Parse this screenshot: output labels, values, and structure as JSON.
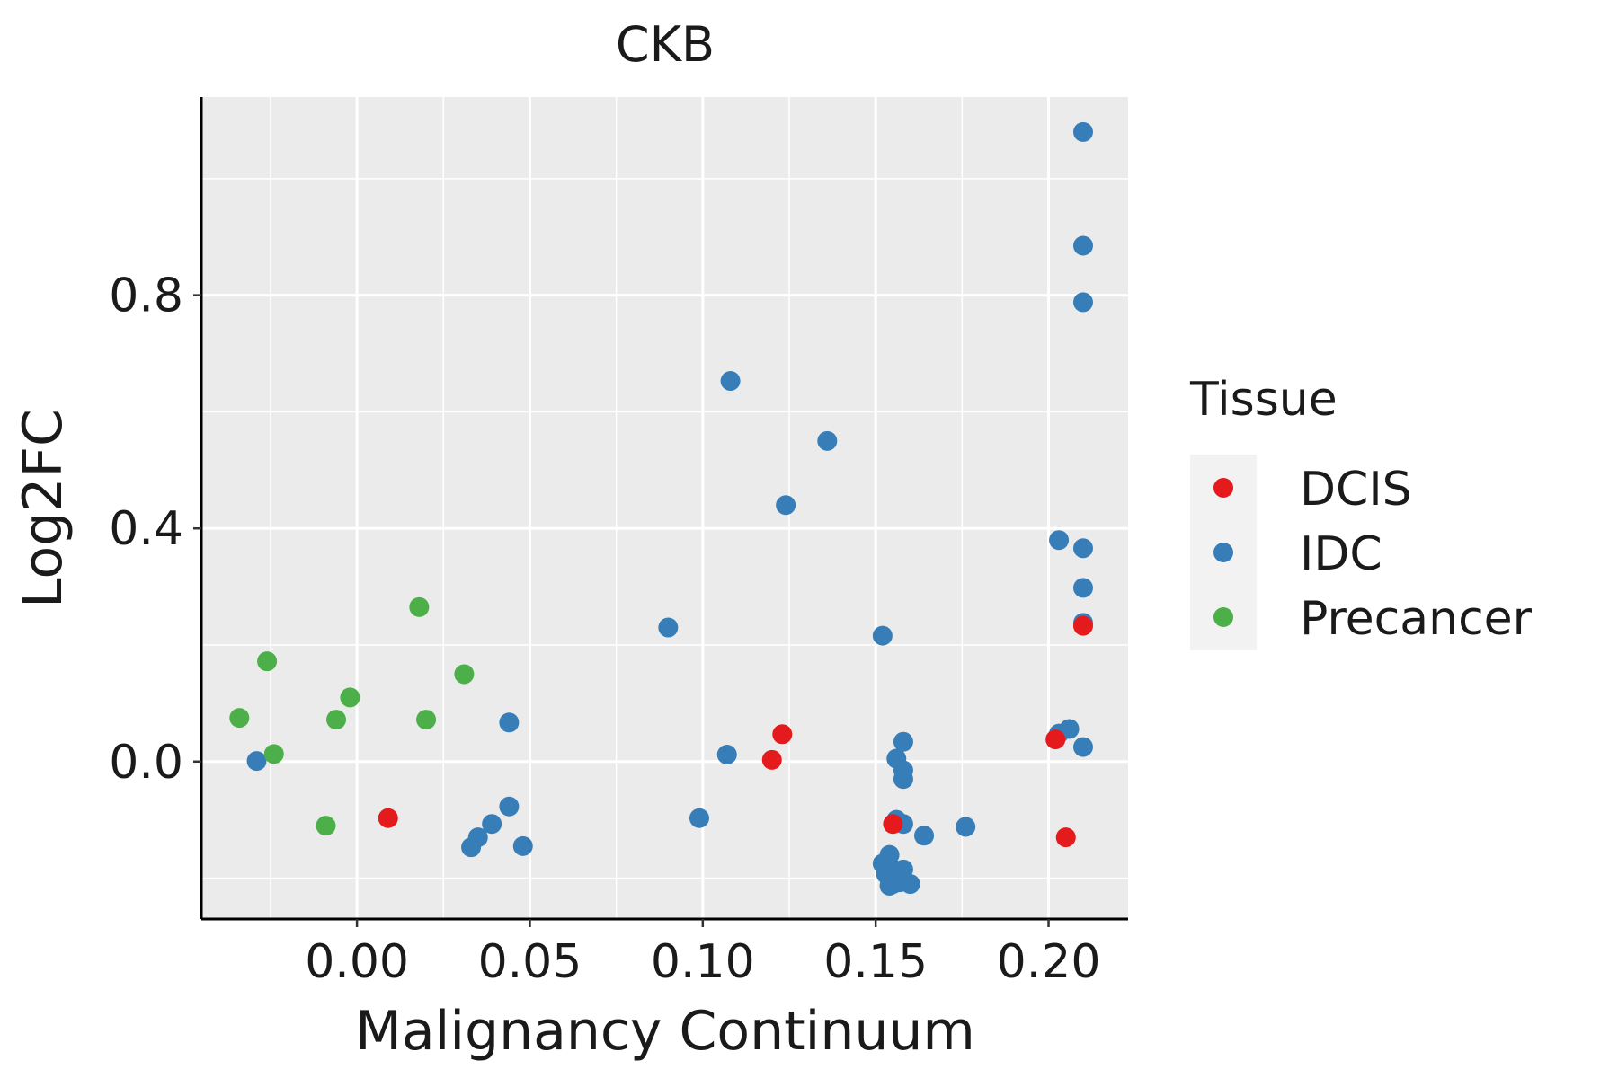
{
  "chart_data": {
    "type": "scatter",
    "title": "CKB",
    "xlabel": "Malignancy Continuum",
    "ylabel": "Log2FC",
    "xlim": [
      -0.045,
      0.223
    ],
    "ylim": [
      -0.27,
      1.14
    ],
    "x_ticks": [
      0.0,
      0.05,
      0.1,
      0.15,
      0.2
    ],
    "x_tick_labels": [
      "0.00",
      "0.05",
      "0.10",
      "0.15",
      "0.20"
    ],
    "y_ticks": [
      0.0,
      0.4,
      0.8
    ],
    "y_tick_labels": [
      "0.0",
      "0.4",
      "0.8"
    ],
    "grid": true,
    "legend": {
      "title": "Tissue",
      "position": "right",
      "entries": [
        "DCIS",
        "IDC",
        "Precancer"
      ]
    },
    "series": [
      {
        "name": "DCIS",
        "color": "#E41A1C",
        "points": [
          [
            0.009,
            -0.097
          ],
          [
            0.12,
            0.003
          ],
          [
            0.123,
            0.047
          ],
          [
            0.155,
            -0.107
          ],
          [
            0.202,
            0.038
          ],
          [
            0.205,
            -0.13
          ],
          [
            0.21,
            0.233
          ]
        ]
      },
      {
        "name": "IDC",
        "color": "#377EB8",
        "points": [
          [
            -0.029,
            0.001
          ],
          [
            0.033,
            -0.147
          ],
          [
            0.035,
            -0.13
          ],
          [
            0.039,
            -0.107
          ],
          [
            0.044,
            -0.077
          ],
          [
            0.044,
            0.067
          ],
          [
            0.048,
            -0.145
          ],
          [
            0.09,
            0.23
          ],
          [
            0.099,
            -0.097
          ],
          [
            0.107,
            0.012
          ],
          [
            0.108,
            0.653
          ],
          [
            0.124,
            0.44
          ],
          [
            0.136,
            0.55
          ],
          [
            0.152,
            0.216
          ],
          [
            0.152,
            -0.175
          ],
          [
            0.153,
            -0.193
          ],
          [
            0.154,
            -0.213
          ],
          [
            0.154,
            -0.16
          ],
          [
            0.155,
            -0.21
          ],
          [
            0.155,
            -0.185
          ],
          [
            0.156,
            0.005
          ],
          [
            0.156,
            -0.1
          ],
          [
            0.157,
            -0.187
          ],
          [
            0.157,
            -0.207
          ],
          [
            0.158,
            -0.185
          ],
          [
            0.158,
            -0.015
          ],
          [
            0.158,
            -0.03
          ],
          [
            0.158,
            0.034
          ],
          [
            0.158,
            -0.107
          ],
          [
            0.16,
            -0.21
          ],
          [
            0.164,
            -0.127
          ],
          [
            0.176,
            -0.112
          ],
          [
            0.203,
            0.048
          ],
          [
            0.203,
            0.38
          ],
          [
            0.206,
            0.056
          ],
          [
            0.21,
            1.08
          ],
          [
            0.21,
            0.885
          ],
          [
            0.21,
            0.788
          ],
          [
            0.21,
            0.366
          ],
          [
            0.21,
            0.298
          ],
          [
            0.21,
            0.238
          ],
          [
            0.21,
            0.025
          ]
        ]
      },
      {
        "name": "Precancer",
        "color": "#4DAF4A",
        "points": [
          [
            -0.034,
            0.075
          ],
          [
            -0.026,
            0.172
          ],
          [
            -0.024,
            0.013
          ],
          [
            -0.009,
            -0.11
          ],
          [
            -0.006,
            0.072
          ],
          [
            -0.002,
            0.11
          ],
          [
            0.018,
            0.265
          ],
          [
            0.02,
            0.072
          ],
          [
            0.031,
            0.15
          ]
        ]
      }
    ]
  }
}
